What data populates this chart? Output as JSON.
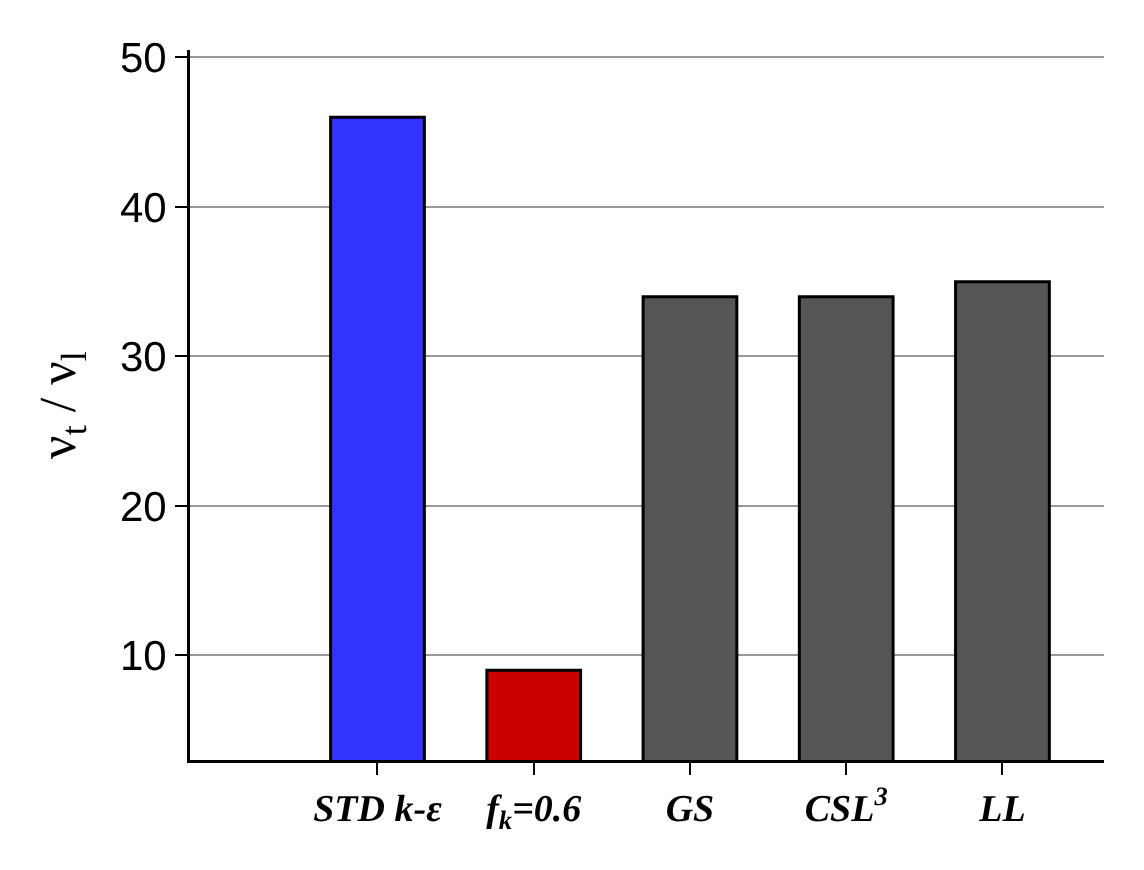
{
  "chart_data": {
    "type": "bar",
    "ylabel": "ν$_{t}$ / ν$_{l}$",
    "categories": [
      "STD k-ε",
      "f$_{k}$=0.6",
      "GS",
      "CSL$^{3}$",
      "LL"
    ],
    "values": [
      46,
      9,
      34,
      34,
      35
    ],
    "colors": [
      "#3333ff",
      "#cc0000",
      "#555555",
      "#555555",
      "#555555"
    ],
    "ylim": [
      3,
      50.5
    ],
    "yticks": [
      10,
      20,
      30,
      40,
      50
    ],
    "grid": "y"
  }
}
